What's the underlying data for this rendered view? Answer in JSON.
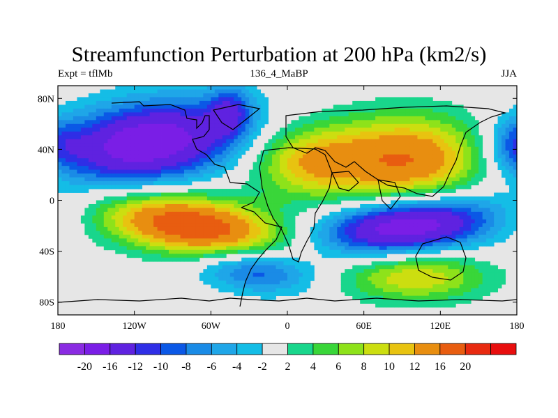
{
  "title": "Streamfunction Perturbation at 200 hPa (km2/s)",
  "subtitle_left": "Expt = tflMb",
  "subtitle_center": "136_4_MaBP",
  "subtitle_right": "JJA",
  "chart_data": {
    "type": "heatmap",
    "xlabel": "",
    "ylabel": "",
    "xlim": [
      -180,
      180
    ],
    "ylim": [
      -90,
      90
    ],
    "x_ticks": [
      {
        "value": -180,
        "label": "180"
      },
      {
        "value": -120,
        "label": "120W"
      },
      {
        "value": -60,
        "label": "60W"
      },
      {
        "value": 0,
        "label": "0"
      },
      {
        "value": 60,
        "label": "60E"
      },
      {
        "value": 120,
        "label": "120E"
      },
      {
        "value": 180,
        "label": "180"
      }
    ],
    "y_ticks": [
      {
        "value": 80,
        "label": "80N"
      },
      {
        "value": 40,
        "label": "40N"
      },
      {
        "value": 0,
        "label": "0"
      },
      {
        "value": -40,
        "label": "40S"
      },
      {
        "value": -80,
        "label": "80S"
      }
    ],
    "colorbar": {
      "levels": [
        -20,
        -16,
        -12,
        -10,
        -8,
        -6,
        -4,
        -2,
        2,
        4,
        6,
        8,
        10,
        12,
        16,
        20
      ],
      "labels": [
        "-20",
        "-16",
        "-12",
        "-10",
        "-8",
        "-6",
        "-4",
        "-2",
        "2",
        "4",
        "6",
        "8",
        "10",
        "12",
        "16",
        "20"
      ],
      "colors": [
        "#8a2be2",
        "#7a1ee6",
        "#5f22e0",
        "#2f2ee6",
        "#0b58e6",
        "#1a8be6",
        "#1fa6e8",
        "#14bde6",
        "#e6e6e6",
        "#19d68c",
        "#39d639",
        "#8ee21a",
        "#ccde10",
        "#e8c310",
        "#e88e10",
        "#e85d10",
        "#e82a10",
        "#e80e0e"
      ]
    },
    "features": [
      {
        "name": "north-pacific-low",
        "lon": -110,
        "lat": 45,
        "peak": -20
      },
      {
        "name": "north-atlantic-low",
        "lon": -45,
        "lat": 70,
        "peak": -8
      },
      {
        "name": "south-pacific-high",
        "lon": -75,
        "lat": -20,
        "peak": 20
      },
      {
        "name": "south-atlantic-low",
        "lon": -25,
        "lat": -55,
        "peak": -10
      },
      {
        "name": "asia-high",
        "lon": 95,
        "lat": 32,
        "peak": 16
      },
      {
        "name": "africa-high",
        "lon": 15,
        "lat": 30,
        "peak": 10
      },
      {
        "name": "indian-ocean-low",
        "lon": 95,
        "lat": -20,
        "peak": -20
      },
      {
        "name": "south-indian-high",
        "lon": 100,
        "lat": -60,
        "peak": 10
      },
      {
        "name": "north-pacific-east-low",
        "lon": 178,
        "lat": 45,
        "peak": -6
      }
    ]
  }
}
